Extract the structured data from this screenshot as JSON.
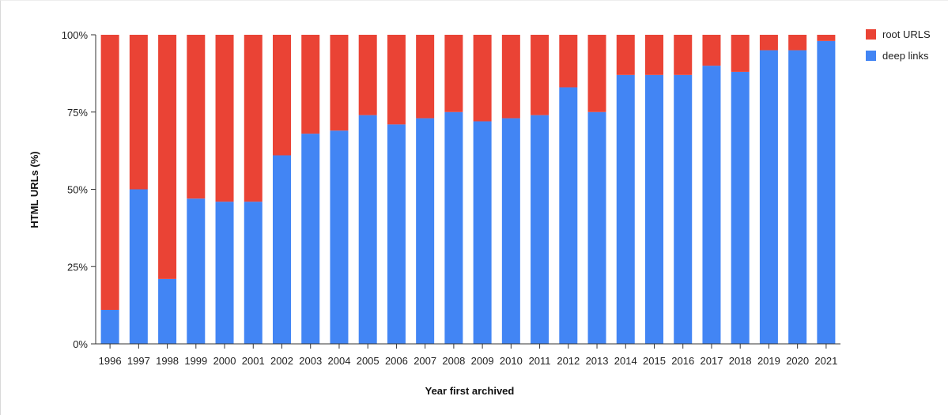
{
  "chart_data": {
    "type": "bar",
    "stacked": true,
    "title": "",
    "xlabel": "Year first archived",
    "ylabel": "HTML URLs (%)",
    "ylim": [
      0,
      100
    ],
    "yticks": [
      "0%",
      "25%",
      "50%",
      "75%",
      "100%"
    ],
    "ytick_values": [
      0,
      25,
      50,
      75,
      100
    ],
    "grid": false,
    "legend_position": "top-right",
    "categories": [
      "1996",
      "1997",
      "1998",
      "1999",
      "2000",
      "2001",
      "2002",
      "2003",
      "2004",
      "2005",
      "2006",
      "2007",
      "2008",
      "2009",
      "2010",
      "2011",
      "2012",
      "2013",
      "2014",
      "2015",
      "2016",
      "2017",
      "2018",
      "2019",
      "2020",
      "2021"
    ],
    "series": [
      {
        "name": "deep links",
        "color": "#4285f4",
        "values": [
          11,
          50,
          21,
          47,
          46,
          46,
          61,
          68,
          69,
          74,
          71,
          73,
          75,
          72,
          73,
          74,
          83,
          75,
          87,
          87,
          87,
          90,
          88,
          95,
          95,
          98
        ]
      },
      {
        "name": "root URLS",
        "color": "#ea4335",
        "values": [
          89,
          50,
          79,
          53,
          54,
          54,
          39,
          32,
          31,
          26,
          29,
          27,
          25,
          28,
          27,
          26,
          17,
          25,
          13,
          13,
          13,
          10,
          12,
          5,
          5,
          2
        ]
      }
    ],
    "legend": [
      {
        "name": "root URLS",
        "color": "#ea4335"
      },
      {
        "name": "deep links",
        "color": "#4285f4"
      }
    ]
  }
}
